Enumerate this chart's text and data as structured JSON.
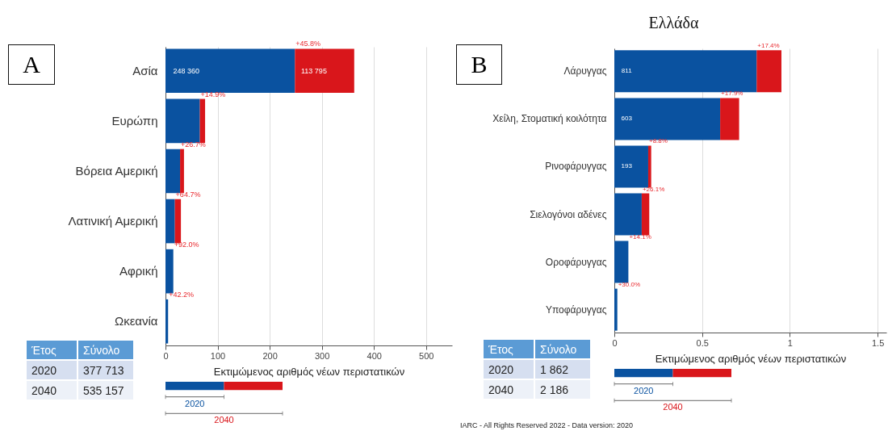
{
  "chart_data": [
    {
      "type": "bar",
      "orientation": "horizontal",
      "stacked": true,
      "categories": [
        "Ασία",
        "Ευρώπη",
        "Βόρεια Αμερική",
        "Λατινική Αμερική",
        "Αφρική",
        "Ωκεανία"
      ],
      "series": [
        {
          "name": "2020",
          "color": "#0a52a0",
          "values": [
            248.4,
            66,
            28,
            18,
            15,
            5
          ]
        },
        {
          "name": "2040",
          "color": "#d9161b",
          "values": [
            113.8,
            10,
            7.5,
            11.6,
            null,
            0
          ]
        }
      ],
      "xlim": [
        0,
        550
      ],
      "xticks": [
        0,
        100,
        200,
        300,
        400,
        500
      ],
      "xlabel": "Εκτιμώμενος αριθμός νέων περιστατικών",
      "grid": "x",
      "legend": "bottom left",
      "annotations": [
        "A",
        "Έτος",
        "Σύνολο",
        "2020",
        "377 713",
        "2040",
        "535 157",
        "+45.8%",
        "+14.9%",
        "+26.7%",
        "+64.7%",
        "+92.0%",
        "+42.2%",
        {
          "text": "248 360",
          "x": 40,
          "y": "Ασία"
        },
        {
          "text": "113 795",
          "x": 285,
          "y": "Ασία"
        }
      ]
    },
    {
      "type": "bar",
      "orientation": "horizontal",
      "stacked": true,
      "title": "Ελλάδα",
      "categories": [
        "Λάρυγγας",
        "Χείλη, Στοματική κοιλότητα",
        "Ρινοφάρυγγας",
        "Σιελογόνοι αδένες",
        "Οροφάρυγγας",
        "Υποφάρυγγας"
      ],
      "series": [
        {
          "name": "2020",
          "color": "#0a52a0",
          "values": [
            0.811,
            0.603,
            0.193,
            0.156,
            0.08,
            0.017
          ]
        },
        {
          "name": "2040",
          "color": "#d9161b",
          "values": [
            0.141,
            0.108,
            0.017,
            0.043,
            0,
            0
          ]
        }
      ],
      "xlim": [
        0,
        1.55
      ],
      "xticks": [
        0,
        0.5,
        1,
        1.5
      ],
      "xlabel": "Εκτιμώμενος αριθμός νέων περιστατικών",
      "grid": "x",
      "legend": "bottom left",
      "annotations": [
        "B",
        "Έτος",
        "Σύνολο",
        "2020",
        "1 862",
        "2040",
        "2 186",
        "+17.4%",
        "+17.9%",
        "+8.8%",
        "+26.1%",
        "+14.1%",
        "+30.0%",
        "IARC - All Rights Reserved 2022 - Data version: 2020",
        {
          "text": "811",
          "x": 0.07,
          "y": "Λάρυγγας"
        },
        {
          "text": "603",
          "x": 0.07,
          "y": "Χείλη, Στοματική κοιλότητα"
        },
        {
          "text": "193",
          "x": 0.07,
          "y": "Ρινοφάρυγγας"
        }
      ]
    }
  ]
}
